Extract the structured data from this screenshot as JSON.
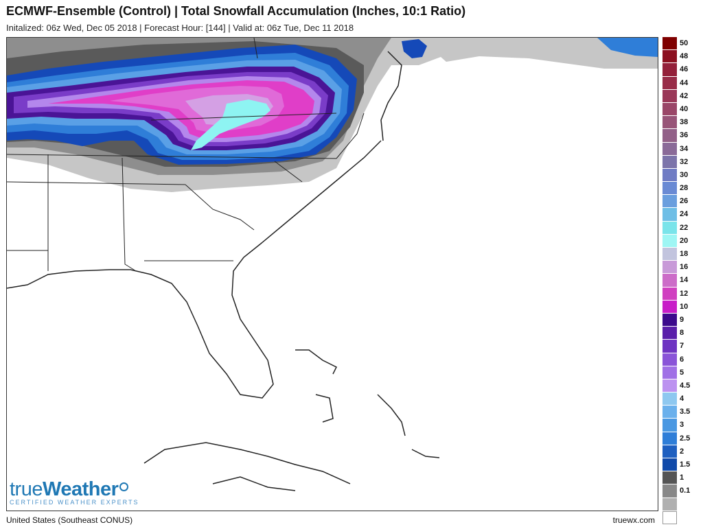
{
  "header": {
    "title": "ECMWF-Ensemble (Control) | Total Snowfall Accumulation (Inches, 10:1 Ratio)",
    "subtitle": "Initalized: 06z Wed, Dec 05 2018 | Forecast Hour: [144] | Valid at: 06z Tue, Dec 11 2018"
  },
  "legend": {
    "items": [
      {
        "label": "50",
        "color": "#7f0000"
      },
      {
        "label": "48",
        "color": "#8c1020"
      },
      {
        "label": "46",
        "color": "#94203a"
      },
      {
        "label": "44",
        "color": "#982c48"
      },
      {
        "label": "42",
        "color": "#9a3858"
      },
      {
        "label": "40",
        "color": "#9a4668"
      },
      {
        "label": "38",
        "color": "#985478"
      },
      {
        "label": "36",
        "color": "#926088"
      },
      {
        "label": "34",
        "color": "#8a6a98"
      },
      {
        "label": "32",
        "color": "#7c74aa"
      },
      {
        "label": "30",
        "color": "#707cc4"
      },
      {
        "label": "28",
        "color": "#6a8ad4"
      },
      {
        "label": "26",
        "color": "#6a9ede"
      },
      {
        "label": "24",
        "color": "#6ebee6"
      },
      {
        "label": "22",
        "color": "#7ae4ea"
      },
      {
        "label": "20",
        "color": "#9ef6f4"
      },
      {
        "label": "18",
        "color": "#c2c4de"
      },
      {
        "label": "16",
        "color": "#c89ad8"
      },
      {
        "label": "14",
        "color": "#cc6cc8"
      },
      {
        "label": "12",
        "color": "#d040c0"
      },
      {
        "label": "10",
        "color": "#c81ec8"
      },
      {
        "label": "9",
        "color": "#3c0a8c"
      },
      {
        "label": "8",
        "color": "#5a1eaa"
      },
      {
        "label": "7",
        "color": "#6e34c2"
      },
      {
        "label": "6",
        "color": "#8a54d8"
      },
      {
        "label": "5",
        "color": "#a070e6"
      },
      {
        "label": "4.5",
        "color": "#bc92f0"
      },
      {
        "label": "4",
        "color": "#8ec8f0"
      },
      {
        "label": "3.5",
        "color": "#6ab0ec"
      },
      {
        "label": "3",
        "color": "#4a98e2"
      },
      {
        "label": "2.5",
        "color": "#2f7ed8"
      },
      {
        "label": "2",
        "color": "#1e5fc0"
      },
      {
        "label": "1.5",
        "color": "#104aaa"
      },
      {
        "label": "1",
        "color": "#555555"
      },
      {
        "label": "0.1",
        "color": "#888888"
      },
      {
        "label": "",
        "color": "#b0b0b0"
      }
    ],
    "zero_color": "#ffffff"
  },
  "map": {
    "region_label": "United States (Southeast CONUS)",
    "colors": {
      "light_gray": "#c6c6c6",
      "mid_gray": "#8e8e8e",
      "dark_gray": "#5a5a5a",
      "blue_dark": "#1549b8",
      "blue_mid": "#2f7ed8",
      "blue_light": "#5aa0e6",
      "purple_dark": "#4a1496",
      "purple": "#7a3cc8",
      "lavender": "#b487ec",
      "magenta": "#e03ec8",
      "pink": "#e06ad8",
      "lightpink": "#d4a0e4",
      "cyan": "#8ef4f2",
      "boundary": "#222222"
    }
  },
  "logo": {
    "name_part1": "true",
    "name_part2": "Weather",
    "tagline": "CERTIFIED WEATHER EXPERTS"
  },
  "footer": {
    "source": "truewx.com"
  }
}
